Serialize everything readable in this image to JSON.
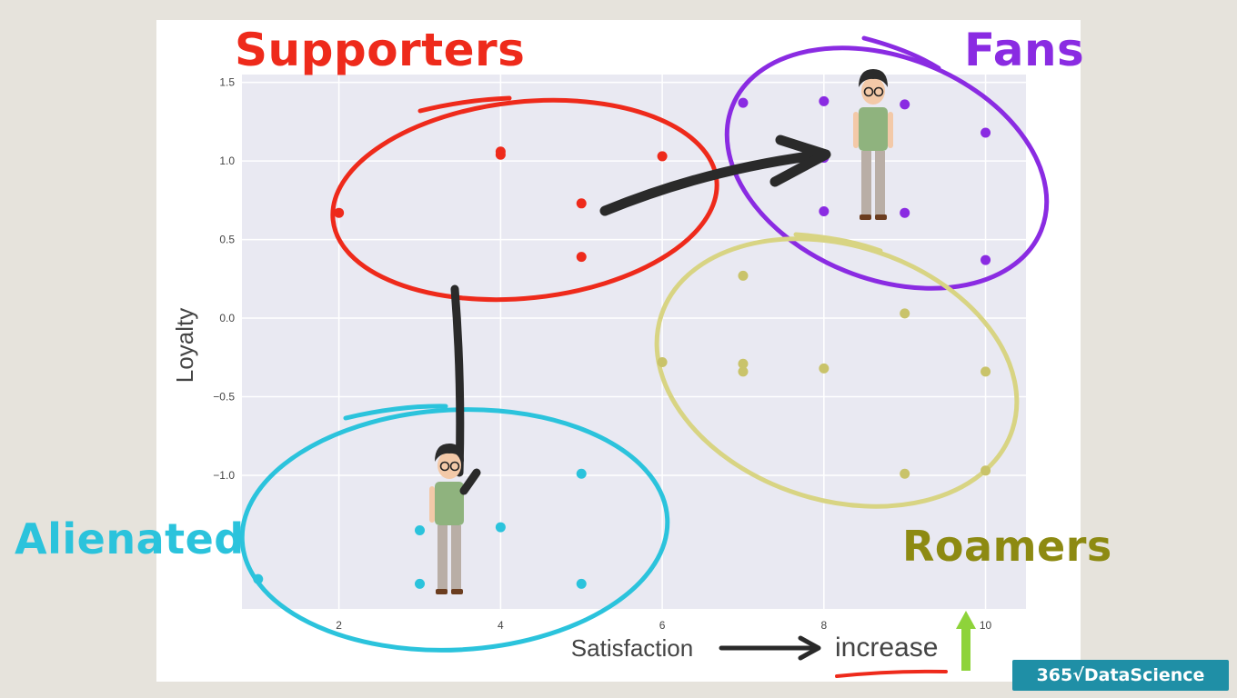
{
  "chart_data": {
    "type": "scatter",
    "xlabel": "Satisfaction",
    "ylabel": "Loyalty",
    "xlim": [
      0.8,
      10.5
    ],
    "ylim": [
      -1.85,
      1.55
    ],
    "xticks": [
      2,
      4,
      6,
      8,
      10
    ],
    "yticks": [
      1.5,
      1.0,
      0.5,
      0.0,
      -0.5,
      -1.0
    ],
    "ytick_labels": [
      "1.5",
      "1.0",
      "0.5",
      "0.0",
      "−0.5",
      "−1.0"
    ],
    "grid": true,
    "series": [
      {
        "name": "Supporters",
        "color": "#ee2a1b",
        "points": [
          [
            2,
            0.67
          ],
          [
            4,
            1.04
          ],
          [
            4,
            1.06
          ],
          [
            5,
            0.73
          ],
          [
            5,
            0.39
          ],
          [
            6,
            1.03
          ]
        ]
      },
      {
        "name": "Fans",
        "color": "#8a2be2",
        "points": [
          [
            7,
            1.37
          ],
          [
            8,
            1.38
          ],
          [
            8,
            1.02
          ],
          [
            8,
            0.68
          ],
          [
            9,
            1.36
          ],
          [
            9,
            0.67
          ],
          [
            10,
            1.18
          ],
          [
            10,
            0.37
          ]
        ]
      },
      {
        "name": "Roamers",
        "color": "#c9c36a",
        "points": [
          [
            6,
            -0.28
          ],
          [
            7,
            0.27
          ],
          [
            7,
            -0.29
          ],
          [
            7,
            -0.34
          ],
          [
            8,
            -0.32
          ],
          [
            9,
            0.03
          ],
          [
            9,
            -0.99
          ],
          [
            10,
            -0.34
          ],
          [
            10,
            -0.97
          ]
        ]
      },
      {
        "name": "Alienated",
        "color": "#2bc3dc",
        "points": [
          [
            1,
            -1.66
          ],
          [
            3,
            -1.35
          ],
          [
            3,
            -1.69
          ],
          [
            4,
            -1.33
          ],
          [
            5,
            -0.99
          ],
          [
            5,
            -1.69
          ]
        ]
      }
    ]
  },
  "annotations": {
    "labels": [
      {
        "text": "Supporters",
        "color": "#ee2a1b"
      },
      {
        "text": "Fans",
        "color": "#8a2be2"
      },
      {
        "text": "Alienated",
        "color": "#2bc3dc"
      },
      {
        "text": "Roamers",
        "color": "#8d8a12"
      }
    ],
    "increase_text": "increase",
    "increase_arrow_color": "#8ed33a",
    "underline_color": "#ee2a1b"
  },
  "logo": {
    "text": "365√DataScience",
    "color": "#1f8fa6"
  }
}
